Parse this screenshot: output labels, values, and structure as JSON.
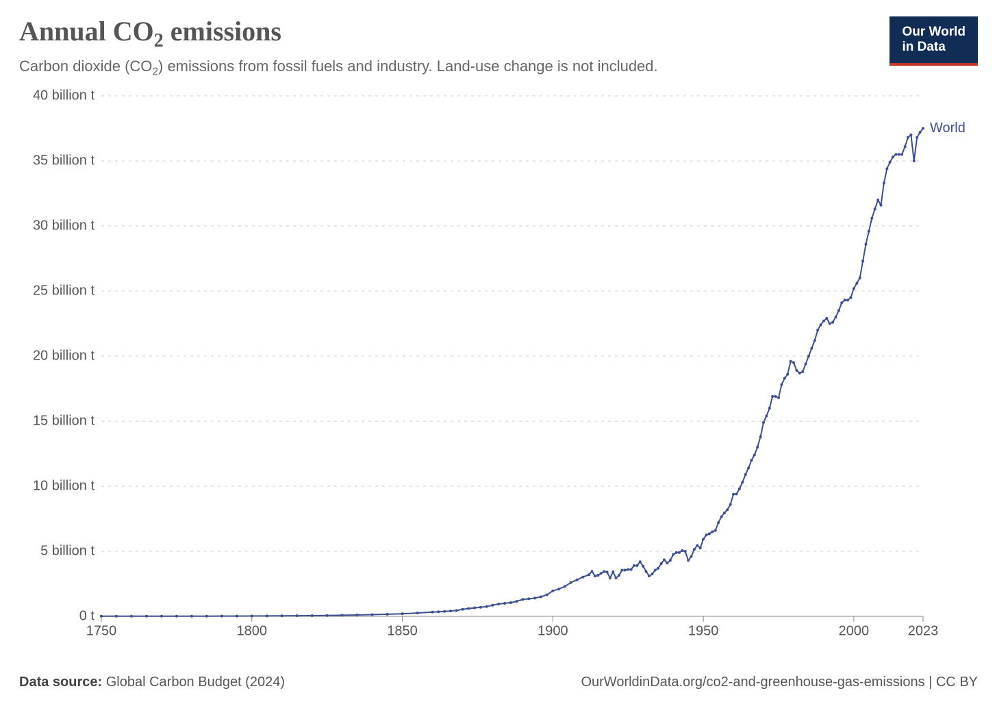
{
  "header": {
    "title_html": "Annual CO<sub>2</sub> emissions",
    "subtitle_html": "Carbon dioxide (CO<sub>2</sub>) emissions from fossil fuels and industry. Land-use change is not included.",
    "logo_line1": "Our World",
    "logo_line2": "in Data"
  },
  "footer": {
    "source_label": "Data source:",
    "source_value": "Global Carbon Budget (2024)",
    "attribution": "OurWorldinData.org/co2-and-greenhouse-gas-emissions | CC BY"
  },
  "chart": {
    "type": "line",
    "background_color": "#ffffff",
    "grid_color": "#cccccc",
    "axis_color": "#888888",
    "x": {
      "min": 1750,
      "max": 2023,
      "ticks": [
        1750,
        1800,
        1850,
        1900,
        1950,
        2000,
        2023
      ],
      "tick_labels": [
        "1750",
        "1800",
        "1850",
        "1900",
        "1950",
        "2000",
        "2023"
      ]
    },
    "y": {
      "min": 0,
      "max": 40,
      "unit": "billion t",
      "ticks": [
        0,
        5,
        10,
        15,
        20,
        25,
        30,
        35,
        40
      ],
      "tick_labels": [
        "0 t",
        "5 billion t",
        "10 billion t",
        "15 billion t",
        "20 billion t",
        "25 billion t",
        "30 billion t",
        "35 billion t",
        "40 billion t"
      ]
    },
    "series": [
      {
        "name": "World",
        "label": "World",
        "color": "#3d4f93",
        "marker_radius": 2,
        "line_width": 2,
        "data": [
          [
            1750,
            0.01
          ],
          [
            1755,
            0.01
          ],
          [
            1760,
            0.011
          ],
          [
            1765,
            0.012
          ],
          [
            1770,
            0.013
          ],
          [
            1775,
            0.014
          ],
          [
            1780,
            0.015
          ],
          [
            1785,
            0.017
          ],
          [
            1790,
            0.019
          ],
          [
            1795,
            0.021
          ],
          [
            1800,
            0.028
          ],
          [
            1805,
            0.033
          ],
          [
            1810,
            0.04
          ],
          [
            1815,
            0.047
          ],
          [
            1820,
            0.054
          ],
          [
            1825,
            0.065
          ],
          [
            1830,
            0.086
          ],
          [
            1835,
            0.107
          ],
          [
            1840,
            0.134
          ],
          [
            1845,
            0.162
          ],
          [
            1850,
            0.198
          ],
          [
            1855,
            0.26
          ],
          [
            1860,
            0.33
          ],
          [
            1862,
            0.35
          ],
          [
            1864,
            0.38
          ],
          [
            1866,
            0.41
          ],
          [
            1868,
            0.45
          ],
          [
            1870,
            0.54
          ],
          [
            1872,
            0.6
          ],
          [
            1874,
            0.65
          ],
          [
            1876,
            0.7
          ],
          [
            1878,
            0.75
          ],
          [
            1880,
            0.86
          ],
          [
            1882,
            0.95
          ],
          [
            1884,
            1.0
          ],
          [
            1886,
            1.05
          ],
          [
            1888,
            1.15
          ],
          [
            1890,
            1.3
          ],
          [
            1892,
            1.35
          ],
          [
            1894,
            1.4
          ],
          [
            1896,
            1.5
          ],
          [
            1898,
            1.65
          ],
          [
            1900,
            1.96
          ],
          [
            1902,
            2.1
          ],
          [
            1904,
            2.3
          ],
          [
            1906,
            2.6
          ],
          [
            1908,
            2.8
          ],
          [
            1910,
            3.02
          ],
          [
            1912,
            3.2
          ],
          [
            1913,
            3.46
          ],
          [
            1914,
            3.1
          ],
          [
            1915,
            3.15
          ],
          [
            1916,
            3.3
          ],
          [
            1917,
            3.45
          ],
          [
            1918,
            3.4
          ],
          [
            1919,
            2.95
          ],
          [
            1920,
            3.42
          ],
          [
            1921,
            2.95
          ],
          [
            1922,
            3.15
          ],
          [
            1923,
            3.55
          ],
          [
            1924,
            3.55
          ],
          [
            1925,
            3.6
          ],
          [
            1926,
            3.6
          ],
          [
            1927,
            3.9
          ],
          [
            1928,
            3.9
          ],
          [
            1929,
            4.2
          ],
          [
            1930,
            3.85
          ],
          [
            1931,
            3.45
          ],
          [
            1932,
            3.1
          ],
          [
            1933,
            3.25
          ],
          [
            1934,
            3.55
          ],
          [
            1935,
            3.7
          ],
          [
            1936,
            4.05
          ],
          [
            1937,
            4.35
          ],
          [
            1938,
            4.1
          ],
          [
            1939,
            4.3
          ],
          [
            1940,
            4.75
          ],
          [
            1941,
            4.9
          ],
          [
            1942,
            4.9
          ],
          [
            1943,
            5.05
          ],
          [
            1944,
            5.0
          ],
          [
            1945,
            4.3
          ],
          [
            1946,
            4.6
          ],
          [
            1947,
            5.15
          ],
          [
            1948,
            5.45
          ],
          [
            1949,
            5.25
          ],
          [
            1950,
            5.93
          ],
          [
            1951,
            6.25
          ],
          [
            1952,
            6.35
          ],
          [
            1953,
            6.5
          ],
          [
            1954,
            6.6
          ],
          [
            1955,
            7.2
          ],
          [
            1956,
            7.65
          ],
          [
            1957,
            7.95
          ],
          [
            1958,
            8.2
          ],
          [
            1959,
            8.6
          ],
          [
            1960,
            9.39
          ],
          [
            1961,
            9.4
          ],
          [
            1962,
            9.8
          ],
          [
            1963,
            10.3
          ],
          [
            1964,
            10.9
          ],
          [
            1965,
            11.4
          ],
          [
            1966,
            12.0
          ],
          [
            1967,
            12.4
          ],
          [
            1968,
            13.0
          ],
          [
            1969,
            13.8
          ],
          [
            1970,
            14.9
          ],
          [
            1971,
            15.4
          ],
          [
            1972,
            16.0
          ],
          [
            1973,
            16.9
          ],
          [
            1974,
            16.9
          ],
          [
            1975,
            16.8
          ],
          [
            1976,
            17.8
          ],
          [
            1977,
            18.3
          ],
          [
            1978,
            18.6
          ],
          [
            1979,
            19.6
          ],
          [
            1980,
            19.5
          ],
          [
            1981,
            18.9
          ],
          [
            1982,
            18.7
          ],
          [
            1983,
            18.8
          ],
          [
            1984,
            19.4
          ],
          [
            1985,
            20.0
          ],
          [
            1986,
            20.6
          ],
          [
            1987,
            21.2
          ],
          [
            1988,
            22.0
          ],
          [
            1989,
            22.4
          ],
          [
            1990,
            22.7
          ],
          [
            1991,
            22.9
          ],
          [
            1992,
            22.5
          ],
          [
            1993,
            22.6
          ],
          [
            1994,
            23.0
          ],
          [
            1995,
            23.5
          ],
          [
            1996,
            24.1
          ],
          [
            1997,
            24.3
          ],
          [
            1998,
            24.3
          ],
          [
            1999,
            24.5
          ],
          [
            2000,
            25.2
          ],
          [
            2001,
            25.6
          ],
          [
            2002,
            26.0
          ],
          [
            2003,
            27.3
          ],
          [
            2004,
            28.6
          ],
          [
            2005,
            29.6
          ],
          [
            2006,
            30.6
          ],
          [
            2007,
            31.3
          ],
          [
            2008,
            32.0
          ],
          [
            2009,
            31.6
          ],
          [
            2010,
            33.3
          ],
          [
            2011,
            34.4
          ],
          [
            2012,
            34.9
          ],
          [
            2013,
            35.3
          ],
          [
            2014,
            35.5
          ],
          [
            2015,
            35.5
          ],
          [
            2016,
            35.5
          ],
          [
            2017,
            36.1
          ],
          [
            2018,
            36.8
          ],
          [
            2019,
            37.0
          ],
          [
            2020,
            35.0
          ],
          [
            2021,
            36.8
          ],
          [
            2022,
            37.2
          ],
          [
            2023,
            37.5
          ]
        ]
      }
    ]
  }
}
